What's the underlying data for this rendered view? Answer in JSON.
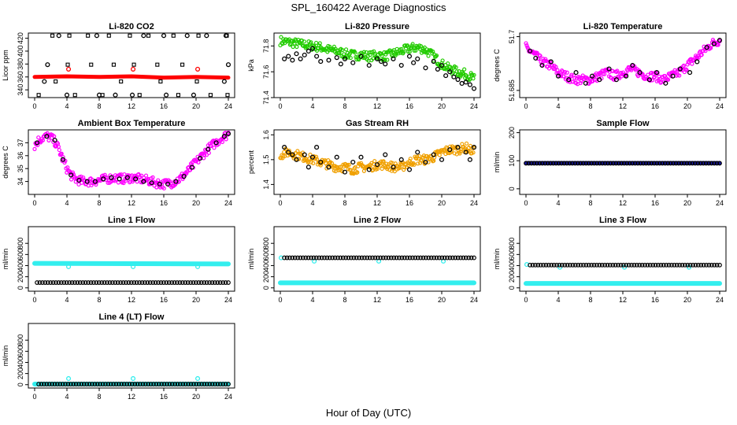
{
  "title": "SPL_160422  Average Diagnostics",
  "xlabel": "Hour of Day (UTC)",
  "colors": {
    "red": "#ff0000",
    "green": "#22cc00",
    "magenta": "#ff00ff",
    "orange": "#f0a000",
    "blue": "#1a1aa6",
    "cyan": "#33eeee",
    "black": "#000000"
  },
  "chart_data": [
    {
      "type": "scatter",
      "title": "Li-820 CO2",
      "ylabel": "Licor ppm",
      "xlim": [
        0,
        24
      ],
      "ylim": [
        328,
        428
      ],
      "yticks": [
        340,
        360,
        380,
        400,
        420
      ],
      "xticks": [
        0,
        4,
        8,
        12,
        16,
        20,
        24
      ],
      "series": [
        {
          "color": "red",
          "style": "line",
          "x": [
            0,
            4,
            8,
            12,
            16,
            20,
            24
          ],
          "y": [
            360,
            361,
            360,
            361,
            359,
            360,
            359
          ]
        },
        {
          "color": "red",
          "style": "circle",
          "x": [
            4.2,
            12.2,
            20.2
          ],
          "y": [
            372,
            372,
            372
          ]
        },
        {
          "color": "black",
          "style": "square",
          "x": [
            0.5,
            2.2,
            2.6,
            4.1,
            4.3,
            5.0,
            6.6,
            7.0,
            8.4,
            9.2,
            9.8,
            10.7,
            11.8,
            12.3,
            13.0,
            14.1,
            15.2,
            15.6,
            17.2,
            17.8,
            18.3,
            20.1,
            20.3,
            21.8,
            23.8,
            23.9
          ],
          "y": [
            332,
            424,
            353,
            379,
            424,
            332,
            424,
            379,
            332,
            424,
            379,
            353,
            424,
            379,
            332,
            424,
            379,
            353,
            424,
            332,
            379,
            353,
            424,
            332,
            424,
            332
          ]
        },
        {
          "color": "black",
          "style": "circle",
          "x": [
            1.2,
            1.6,
            3.0,
            4.0,
            7.7,
            8.0,
            10.0,
            12.1,
            13.5,
            16.0,
            16.3,
            18.9,
            19.7,
            21.3,
            23.5,
            23.7,
            24.0
          ],
          "y": [
            353,
            379,
            424,
            332,
            424,
            332,
            332,
            332,
            424,
            424,
            332,
            424,
            332,
            424,
            353,
            424,
            379
          ]
        }
      ]
    },
    {
      "type": "scatter",
      "title": "Li-820 Pressure",
      "ylabel": "kPa",
      "xlim": [
        0,
        24
      ],
      "ylim": [
        71.4,
        71.9
      ],
      "yticks": [
        71.4,
        71.6,
        71.8
      ],
      "xticks": [
        0,
        4,
        8,
        12,
        16,
        20,
        24
      ],
      "series": [
        {
          "color": "green",
          "style": "dense",
          "x": [
            0,
            1,
            2,
            3,
            4,
            5,
            6,
            7,
            8,
            9,
            10,
            11,
            12,
            13,
            14,
            15,
            16,
            17,
            18,
            19,
            20,
            21,
            22,
            23,
            24
          ],
          "y": [
            71.84,
            71.83,
            71.82,
            71.81,
            71.8,
            71.79,
            71.77,
            71.76,
            71.74,
            71.73,
            71.73,
            71.72,
            71.73,
            71.72,
            71.74,
            71.76,
            71.78,
            71.79,
            71.77,
            71.72,
            71.66,
            71.62,
            71.6,
            71.58,
            71.55
          ]
        },
        {
          "color": "black",
          "style": "circle",
          "x": [
            0.5,
            1.0,
            1.5,
            2.0,
            2.5,
            3.0,
            3.5,
            4.0,
            4.5,
            5.0,
            6.0,
            7.0,
            7.5,
            8.0,
            9.0,
            10.0,
            11.0,
            12.0,
            12.5,
            13.0,
            14.0,
            15.0,
            16.0,
            16.5,
            17.0,
            18.0,
            19.0,
            19.5,
            20.0,
            20.5,
            21.0,
            21.5,
            22.0,
            22.5,
            23.0,
            23.5,
            24.0
          ],
          "y": [
            71.7,
            71.72,
            71.69,
            71.74,
            71.7,
            71.73,
            71.76,
            71.78,
            71.72,
            71.68,
            71.69,
            71.71,
            71.66,
            71.7,
            71.67,
            71.72,
            71.65,
            71.7,
            71.68,
            71.66,
            71.7,
            71.65,
            71.72,
            71.67,
            71.7,
            71.63,
            71.68,
            71.62,
            71.65,
            71.57,
            71.6,
            71.56,
            71.54,
            71.51,
            71.52,
            71.5,
            71.47
          ]
        }
      ]
    },
    {
      "type": "scatter",
      "title": "Li-820 Temperature",
      "ylabel": "degrees C",
      "xlim": [
        0,
        24
      ],
      "ylim": [
        51.683,
        51.701
      ],
      "yticks": [
        51.685,
        51.7
      ],
      "xticks": [
        0,
        4,
        8,
        12,
        16,
        20,
        24
      ],
      "series": [
        {
          "color": "magenta",
          "style": "dense",
          "x": [
            0,
            1,
            2,
            3,
            4,
            5,
            6,
            7,
            8,
            9,
            10,
            11,
            12,
            13,
            14,
            15,
            16,
            17,
            18,
            19,
            20,
            21,
            22,
            23,
            24
          ],
          "y": [
            51.697,
            51.695,
            51.693,
            51.692,
            51.69,
            51.689,
            51.688,
            51.688,
            51.688,
            51.689,
            51.69,
            51.689,
            51.69,
            51.691,
            51.69,
            51.689,
            51.689,
            51.688,
            51.689,
            51.69,
            51.692,
            51.694,
            51.696,
            51.698,
            51.699
          ]
        },
        {
          "color": "black",
          "style": "circle",
          "x": [
            0.5,
            1.2,
            2.0,
            3.1,
            4.0,
            5.3,
            6.2,
            7.4,
            8.2,
            9.1,
            10.3,
            11.2,
            12.4,
            13.2,
            14.1,
            15.3,
            16.2,
            17.3,
            18.2,
            19.1,
            20.3,
            21.2,
            22.4,
            23.3,
            24.0
          ],
          "y": [
            51.696,
            51.694,
            51.692,
            51.693,
            51.689,
            51.688,
            51.69,
            51.687,
            51.689,
            51.688,
            51.691,
            51.688,
            51.689,
            51.692,
            51.69,
            51.688,
            51.69,
            51.687,
            51.689,
            51.691,
            51.69,
            51.693,
            51.697,
            51.698,
            51.699
          ]
        }
      ]
    },
    {
      "type": "scatter",
      "title": "Ambient Box Temperature",
      "ylabel": "degrees C",
      "xlim": [
        0,
        24
      ],
      "ylim": [
        33,
        38
      ],
      "yticks": [
        34,
        35,
        36,
        37
      ],
      "xticks": [
        0,
        4,
        8,
        12,
        16,
        20,
        24
      ],
      "series": [
        {
          "color": "magenta",
          "style": "dense",
          "x": [
            0,
            0.5,
            1,
            1.5,
            2,
            2.5,
            3,
            3.5,
            4,
            4.5,
            5,
            6,
            7,
            8,
            9,
            10,
            11,
            12,
            13,
            14,
            15,
            16,
            17,
            18,
            19,
            20,
            21,
            22,
            23,
            24
          ],
          "y": [
            36.8,
            37.2,
            37.4,
            37.5,
            37.4,
            37.1,
            36.5,
            35.7,
            35,
            34.5,
            34.2,
            34,
            34,
            34.1,
            34.2,
            34.3,
            34.2,
            34.3,
            34.2,
            34.1,
            33.9,
            33.8,
            33.9,
            34.2,
            34.8,
            35.5,
            36.2,
            36.8,
            37.3,
            37.7
          ]
        },
        {
          "color": "black",
          "style": "circle",
          "x": [
            0.3,
            1.5,
            2.5,
            3.5,
            4.5,
            5.5,
            6.5,
            7.5,
            8.5,
            9.5,
            10.5,
            11.5,
            12.5,
            13.5,
            14.5,
            15.5,
            16.5,
            17.5,
            18.5,
            19.5,
            20.5,
            21.5,
            22.5,
            23.5,
            24.0
          ],
          "y": [
            37,
            37.5,
            37.2,
            35.7,
            34.5,
            34.1,
            34,
            34,
            34.2,
            34.3,
            34.2,
            34.3,
            34.2,
            34,
            33.9,
            33.8,
            33.8,
            34,
            34.4,
            35.1,
            35.8,
            36.5,
            37,
            37.5,
            37.7
          ]
        }
      ]
    },
    {
      "type": "scatter",
      "title": "Gas Stream RH",
      "ylabel": "percent",
      "xlim": [
        0,
        24
      ],
      "ylim": [
        1.36,
        1.62
      ],
      "yticks": [
        1.4,
        1.5,
        1.6
      ],
      "xticks": [
        0,
        4,
        8,
        12,
        16,
        20,
        24
      ],
      "series": [
        {
          "color": "orange",
          "style": "dense",
          "x": [
            0,
            1,
            2,
            3,
            4,
            5,
            6,
            7,
            8,
            9,
            10,
            11,
            12,
            13,
            14,
            15,
            16,
            17,
            18,
            19,
            20,
            21,
            22,
            23,
            24
          ],
          "y": [
            1.52,
            1.53,
            1.52,
            1.51,
            1.5,
            1.49,
            1.48,
            1.47,
            1.47,
            1.46,
            1.47,
            1.47,
            1.48,
            1.48,
            1.47,
            1.47,
            1.49,
            1.5,
            1.5,
            1.51,
            1.53,
            1.54,
            1.54,
            1.55,
            1.53
          ]
        },
        {
          "color": "black",
          "style": "circle",
          "x": [
            0.5,
            1.0,
            1.5,
            2.0,
            3.0,
            3.5,
            4.0,
            4.5,
            5.0,
            6.0,
            7.0,
            8.0,
            9.0,
            10.0,
            11.0,
            12.0,
            13.0,
            14.0,
            15.0,
            16.0,
            17.0,
            18.0,
            19.0,
            20.0,
            21.0,
            22.0,
            23.0,
            23.5,
            24.0
          ],
          "y": [
            1.55,
            1.53,
            1.52,
            1.5,
            1.52,
            1.47,
            1.51,
            1.55,
            1.49,
            1.47,
            1.51,
            1.45,
            1.49,
            1.51,
            1.46,
            1.48,
            1.52,
            1.47,
            1.5,
            1.46,
            1.53,
            1.49,
            1.52,
            1.5,
            1.54,
            1.55,
            1.53,
            1.5,
            1.55
          ]
        }
      ]
    },
    {
      "type": "scatter",
      "title": "Sample Flow",
      "ylabel": "ml/min",
      "xlim": [
        0,
        24
      ],
      "ylim": [
        -20,
        210
      ],
      "yticks": [
        0,
        100,
        200
      ],
      "xticks": [
        0,
        4,
        8,
        12,
        16,
        20,
        24
      ],
      "series": [
        {
          "color": "blue",
          "style": "line",
          "x": [
            0,
            24
          ],
          "y": [
            92,
            92
          ]
        },
        {
          "color": "black",
          "style": "circle-row",
          "x": [
            0,
            24
          ],
          "y": [
            91,
            91
          ]
        }
      ]
    },
    {
      "type": "scatter",
      "title": "Line 1 Flow",
      "ylabel": "ml/min",
      "xlim": [
        0,
        24
      ],
      "ylim": [
        -60,
        1100
      ],
      "yticks": [
        0,
        200,
        400,
        600,
        800
      ],
      "xticks": [
        0,
        4,
        8,
        12,
        16,
        20,
        24
      ],
      "series": [
        {
          "color": "cyan",
          "style": "thickline",
          "x": [
            0,
            24
          ],
          "y": [
            440,
            430
          ]
        },
        {
          "color": "cyan",
          "style": "circle",
          "x": [
            4.2,
            12.2,
            20.2
          ],
          "y": [
            380,
            380,
            380
          ]
        },
        {
          "color": "black",
          "style": "circle-row",
          "x": [
            0.3,
            24
          ],
          "y": [
            95,
            95
          ]
        }
      ]
    },
    {
      "type": "scatter",
      "title": "Line 2 Flow",
      "ylabel": "ml/min",
      "xlim": [
        0,
        24
      ],
      "ylim": [
        -60,
        1100
      ],
      "yticks": [
        0,
        200,
        400,
        600,
        800
      ],
      "xticks": [
        0,
        4,
        8,
        12,
        16,
        20,
        24
      ],
      "series": [
        {
          "color": "cyan",
          "style": "thickline",
          "x": [
            0,
            24
          ],
          "y": [
            90,
            90
          ]
        },
        {
          "color": "cyan",
          "style": "circle",
          "x": [
            0.1,
            4.2,
            12.2,
            20.2
          ],
          "y": [
            540,
            480,
            480,
            480
          ]
        },
        {
          "color": "black",
          "style": "circle-row",
          "x": [
            0.5,
            24
          ],
          "y": [
            540,
            540
          ]
        }
      ]
    },
    {
      "type": "scatter",
      "title": "Line 3 Flow",
      "ylabel": "ml/min",
      "xlim": [
        0,
        24
      ],
      "ylim": [
        -60,
        1100
      ],
      "yticks": [
        0,
        200,
        400,
        600,
        800
      ],
      "xticks": [
        0,
        4,
        8,
        12,
        16,
        20,
        24
      ],
      "series": [
        {
          "color": "cyan",
          "style": "thickline",
          "x": [
            0,
            24
          ],
          "y": [
            80,
            80
          ]
        },
        {
          "color": "cyan",
          "style": "circle",
          "x": [
            0.1,
            4.2,
            12.2,
            20.2
          ],
          "y": [
            420,
            370,
            370,
            370
          ]
        },
        {
          "color": "black",
          "style": "circle-row",
          "x": [
            0.5,
            24
          ],
          "y": [
            410,
            410
          ]
        }
      ]
    },
    {
      "type": "scatter",
      "title": "Line 4 (LT) Flow",
      "ylabel": "ml/min",
      "xlim": [
        0,
        24
      ],
      "ylim": [
        -60,
        1100
      ],
      "yticks": [
        0,
        200,
        400,
        600,
        800
      ],
      "xticks": [
        0,
        4,
        8,
        12,
        16,
        20,
        24
      ],
      "series": [
        {
          "color": "cyan",
          "style": "thickline",
          "x": [
            0,
            24
          ],
          "y": [
            10,
            10
          ]
        },
        {
          "color": "cyan",
          "style": "circle",
          "x": [
            0.1,
            4.2,
            12.2,
            20.2
          ],
          "y": [
            10,
            110,
            110,
            110
          ]
        },
        {
          "color": "black",
          "style": "circle-row",
          "x": [
            0.5,
            24
          ],
          "y": [
            10,
            10
          ]
        }
      ]
    }
  ]
}
